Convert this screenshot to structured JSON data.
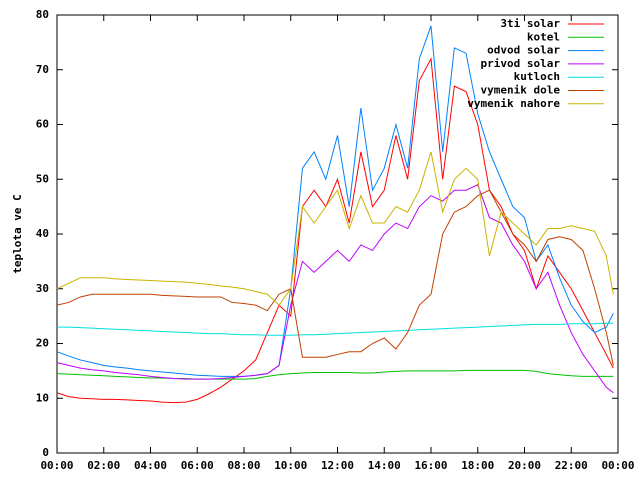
{
  "chart_data": {
    "type": "line",
    "ylabel": "teplota ve C",
    "x": [
      0,
      0.5,
      1,
      1.5,
      2,
      2.5,
      3,
      3.5,
      4,
      4.5,
      5,
      5.5,
      6,
      6.5,
      7,
      7.5,
      8,
      8.5,
      9,
      9.5,
      10,
      10.5,
      11,
      11.5,
      12,
      12.5,
      13,
      13.5,
      14,
      14.5,
      15,
      15.5,
      16,
      16.5,
      17,
      17.5,
      18,
      18.5,
      19,
      19.5,
      20,
      20.5,
      21,
      21.5,
      22,
      22.5,
      23,
      23.5,
      23.8
    ],
    "xlim": [
      0,
      24
    ],
    "xticks": [
      {
        "value": 0,
        "label": "00:00"
      },
      {
        "value": 2,
        "label": "02:00"
      },
      {
        "value": 4,
        "label": "04:00"
      },
      {
        "value": 6,
        "label": "06:00"
      },
      {
        "value": 8,
        "label": "08:00"
      },
      {
        "value": 10,
        "label": "10:00"
      },
      {
        "value": 12,
        "label": "12:00"
      },
      {
        "value": 14,
        "label": "14:00"
      },
      {
        "value": 16,
        "label": "16:00"
      },
      {
        "value": 18,
        "label": "18:00"
      },
      {
        "value": 20,
        "label": "20:00"
      },
      {
        "value": 22,
        "label": "22:00"
      },
      {
        "value": 24,
        "label": "00:00"
      }
    ],
    "ylim": [
      0,
      80
    ],
    "yticks": [
      0,
      10,
      20,
      30,
      40,
      50,
      60,
      70,
      80
    ],
    "legend": "top-right",
    "series": [
      {
        "name": "3ti solar",
        "color": "#ff0000",
        "values": [
          11,
          10.3,
          10,
          9.9,
          9.8,
          9.8,
          9.7,
          9.6,
          9.5,
          9.3,
          9.2,
          9.3,
          9.8,
          10.8,
          12,
          13.5,
          15,
          17,
          22,
          27,
          25,
          45,
          48,
          45,
          50,
          42,
          55,
          45,
          48,
          58,
          50,
          68,
          72,
          50,
          67,
          66,
          60,
          48,
          45,
          40,
          37,
          30,
          36,
          33,
          30,
          26,
          22,
          18,
          15.5
        ]
      },
      {
        "name": "kotel",
        "color": "#00c000",
        "values": [
          14.5,
          14.4,
          14.3,
          14.2,
          14.1,
          14,
          13.9,
          13.8,
          13.7,
          13.7,
          13.6,
          13.6,
          13.5,
          13.5,
          13.5,
          13.5,
          13.5,
          13.6,
          14,
          14.3,
          14.5,
          14.6,
          14.7,
          14.7,
          14.7,
          14.7,
          14.6,
          14.6,
          14.8,
          14.9,
          15,
          15,
          15,
          15,
          15,
          15.1,
          15.1,
          15.1,
          15.1,
          15.1,
          15.1,
          14.9,
          14.5,
          14.3,
          14.1,
          14,
          14,
          14,
          14
        ]
      },
      {
        "name": "odvod solar",
        "color": "#0080ff",
        "values": [
          18.5,
          17.7,
          17,
          16.5,
          16,
          15.7,
          15.5,
          15.2,
          15,
          14.8,
          14.6,
          14.4,
          14.2,
          14.1,
          14,
          14,
          14,
          14.2,
          14.5,
          16,
          30,
          52,
          55,
          50,
          58,
          45,
          63,
          48,
          52,
          60,
          52,
          72,
          78,
          55,
          74,
          73,
          62,
          55,
          50,
          45,
          43,
          35,
          38,
          32,
          27,
          24,
          22,
          23,
          25.5
        ]
      },
      {
        "name": "privod solar",
        "color": "#c000ff",
        "values": [
          16.5,
          16,
          15.5,
          15.2,
          15,
          14.7,
          14.5,
          14.3,
          14,
          13.8,
          13.6,
          13.5,
          13.5,
          13.5,
          13.6,
          13.8,
          14,
          14.2,
          14.5,
          16,
          27,
          35,
          33,
          35,
          37,
          35,
          38,
          37,
          40,
          42,
          41,
          45,
          47,
          46,
          48,
          48,
          49,
          43,
          42,
          38,
          35,
          30,
          33,
          27,
          22,
          18,
          15,
          12,
          11
        ]
      },
      {
        "name": "kutloch",
        "color": "#00e0e0",
        "values": [
          23,
          23,
          22.9,
          22.8,
          22.7,
          22.6,
          22.5,
          22.4,
          22.3,
          22.2,
          22.1,
          22,
          21.9,
          21.8,
          21.8,
          21.7,
          21.6,
          21.6,
          21.5,
          21.5,
          21.5,
          21.6,
          21.6,
          21.7,
          21.8,
          21.9,
          22,
          22.1,
          22.2,
          22.3,
          22.4,
          22.5,
          22.6,
          22.7,
          22.8,
          22.9,
          23,
          23.1,
          23.2,
          23.3,
          23.4,
          23.5,
          23.5,
          23.5,
          23.6,
          23.6,
          23.6,
          23.7,
          23.7
        ]
      },
      {
        "name": "vymenik dole",
        "color": "#c04000",
        "values": [
          27,
          27.5,
          28.5,
          29,
          29,
          29,
          29,
          29,
          29,
          28.8,
          28.7,
          28.6,
          28.5,
          28.5,
          28.5,
          27.5,
          27.3,
          27,
          26,
          29,
          30,
          17.5,
          17.5,
          17.5,
          18,
          18.5,
          18.5,
          20,
          21,
          19,
          22,
          27,
          29,
          40,
          44,
          45,
          47,
          48,
          44,
          40,
          38,
          35,
          39,
          39.5,
          39,
          37,
          30,
          22,
          16
        ]
      },
      {
        "name": "vymenik nahore",
        "color": "#c8b400",
        "values": [
          30,
          31,
          32,
          32,
          32,
          31.8,
          31.7,
          31.6,
          31.5,
          31.4,
          31.3,
          31.2,
          31,
          30.8,
          30.5,
          30.3,
          30,
          29.5,
          29,
          27,
          30,
          45,
          42,
          45,
          48,
          41,
          47,
          42,
          42,
          45,
          44,
          48,
          55,
          44,
          50,
          52,
          50,
          36,
          44,
          42,
          40,
          38,
          41,
          41,
          41.5,
          41,
          40.5,
          36,
          29
        ]
      }
    ]
  }
}
